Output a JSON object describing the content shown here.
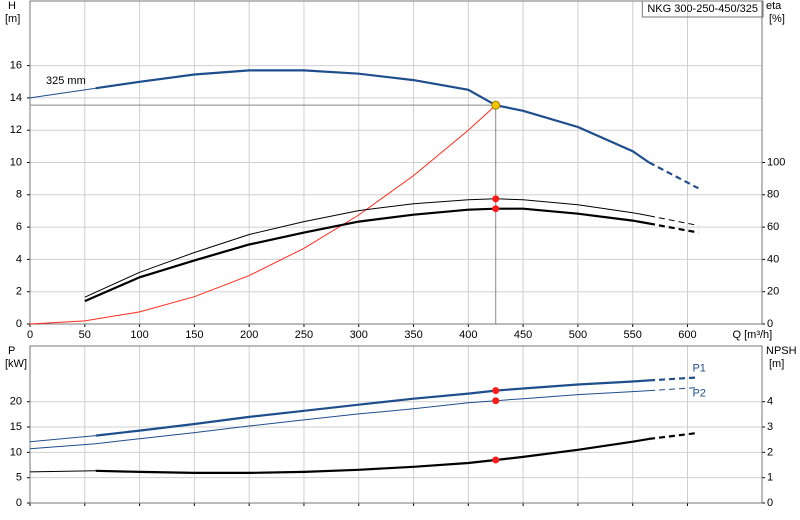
{
  "chart_data": [
    {
      "type": "line",
      "title": "NKG 300-250-450/325",
      "xlabel": "Q [m³/h]",
      "ylabel": "H",
      "yunit": "[m]",
      "y2label": "eta",
      "y2unit": "[%]",
      "xlim": [
        0,
        668
      ],
      "xticks": [
        0,
        50,
        100,
        150,
        200,
        250,
        300,
        350,
        400,
        450,
        500,
        550,
        600
      ],
      "xtick_labels": true,
      "ylim": [
        0,
        20
      ],
      "yticks": [
        0,
        2,
        4,
        6,
        8,
        10,
        12,
        14,
        16
      ],
      "y2lim": [
        0,
        200
      ],
      "y2ticks": [
        0,
        20,
        40,
        60,
        80,
        100
      ],
      "grid": true,
      "duty_point": {
        "x": 425,
        "y": 13.55,
        "color": "#f5c400"
      },
      "series": [
        {
          "name": "325 mm",
          "label_at": "start",
          "color": "#1f4e8c",
          "segments": [
            {
              "style": "thin",
              "x": [
                0,
                60
              ],
              "values": [
                14.0,
                14.6
              ]
            },
            {
              "style": "solid",
              "x": [
                60,
                100,
                150,
                200,
                250,
                300,
                350,
                400,
                425,
                450,
                500,
                550,
                565
              ],
              "values": [
                14.6,
                15.0,
                15.45,
                15.7,
                15.7,
                15.5,
                15.1,
                14.5,
                13.55,
                13.2,
                12.2,
                10.7,
                10.0
              ]
            },
            {
              "style": "dashed",
              "x": [
                565,
                610
              ],
              "values": [
                10.0,
                8.4
              ]
            }
          ]
        },
        {
          "color": "#ff2a1a",
          "segments": [
            {
              "style": "thin",
              "x": [
                0,
                50,
                100,
                150,
                200,
                250,
                300,
                350,
                400,
                425
              ],
              "values": [
                0,
                0.19,
                0.75,
                1.69,
                3.0,
                4.69,
                6.75,
                9.19,
                12.0,
                13.55
              ]
            }
          ]
        },
        {
          "axis": "y2",
          "color": "#000000",
          "duty_marker": true,
          "segments": [
            {
              "style": "thin",
              "x": [
                50,
                100,
                150,
                200,
                250,
                300,
                350,
                400,
                425,
                450,
                500,
                550,
                565
              ],
              "values": [
                16.6,
                32,
                44.3,
                55.4,
                63.4,
                70.2,
                74.5,
                76.9,
                77.5,
                76.9,
                73.8,
                68.9,
                67
              ]
            },
            {
              "style": "thin-dashed",
              "x": [
                565,
                610
              ],
              "values": [
                67,
                61
              ]
            }
          ]
        },
        {
          "axis": "y2",
          "color": "#000000",
          "duty_marker": true,
          "segments": [
            {
              "style": "solid",
              "x": [
                50,
                100,
                150,
                200,
                250,
                300,
                350,
                400,
                425,
                450,
                500,
                550,
                565
              ],
              "values": [
                14.2,
                28.9,
                39.4,
                49.2,
                56.6,
                63.4,
                67.7,
                70.8,
                71.4,
                71.4,
                68.3,
                64,
                62.2
              ]
            },
            {
              "style": "dashed",
              "x": [
                565,
                610
              ],
              "values": [
                62.2,
                56.6
              ]
            }
          ]
        }
      ]
    },
    {
      "type": "line",
      "ylabel": "P",
      "yunit": "[kW]",
      "y2label": "NPSH",
      "y2unit": "[m]",
      "xlim": [
        0,
        668
      ],
      "xticks": [
        0,
        50,
        100,
        150,
        200,
        250,
        300,
        350,
        400,
        450,
        500,
        550,
        600
      ],
      "xtick_labels": false,
      "ylim": [
        0,
        31
      ],
      "yticks": [
        0,
        5,
        10,
        15,
        20
      ],
      "y2lim": [
        0,
        6.2
      ],
      "y2ticks": [
        0,
        1,
        2,
        3,
        4
      ],
      "grid": true,
      "duty_point": {
        "x": 425
      },
      "series": [
        {
          "name": "P1",
          "label_at": "end",
          "color": "#1f4e8c",
          "duty_marker": true,
          "segments": [
            {
              "style": "thin",
              "x": [
                0,
                60
              ],
              "values": [
                12.1,
                13.3
              ]
            },
            {
              "style": "solid",
              "x": [
                60,
                100,
                150,
                200,
                250,
                300,
                350,
                400,
                425,
                450,
                500,
                550,
                565
              ],
              "values": [
                13.3,
                14.3,
                15.6,
                17.0,
                18.2,
                19.4,
                20.6,
                21.6,
                22.2,
                22.6,
                23.4,
                24.0,
                24.2
              ]
            },
            {
              "style": "dashed",
              "x": [
                565,
                610
              ],
              "values": [
                24.2,
                24.8
              ]
            }
          ]
        },
        {
          "name": "P2",
          "label_at": "end",
          "color": "#1f4e8c",
          "duty_marker": true,
          "segments": [
            {
              "style": "thin",
              "x": [
                0,
                60,
                100,
                150,
                200,
                250,
                300,
                350,
                400,
                425,
                450,
                500,
                550,
                565
              ],
              "values": [
                10.7,
                11.7,
                12.7,
                13.9,
                15.2,
                16.4,
                17.6,
                18.6,
                19.8,
                20.2,
                20.6,
                21.4,
                22.0,
                22.2
              ]
            },
            {
              "style": "thin-dashed",
              "x": [
                565,
                610
              ],
              "values": [
                22.2,
                22.8
              ]
            }
          ]
        },
        {
          "axis": "y2",
          "color": "#000000",
          "duty_marker": true,
          "segments": [
            {
              "style": "thin",
              "x": [
                0,
                60
              ],
              "values": [
                1.23,
                1.27
              ]
            },
            {
              "style": "solid",
              "x": [
                60,
                100,
                150,
                200,
                250,
                300,
                350,
                400,
                425,
                450,
                500,
                550,
                565
              ],
              "values": [
                1.27,
                1.23,
                1.19,
                1.19,
                1.23,
                1.31,
                1.43,
                1.58,
                1.7,
                1.82,
                2.1,
                2.42,
                2.53
              ]
            },
            {
              "style": "dashed",
              "x": [
                565,
                610
              ],
              "values": [
                2.53,
                2.77
              ]
            }
          ]
        }
      ]
    }
  ]
}
